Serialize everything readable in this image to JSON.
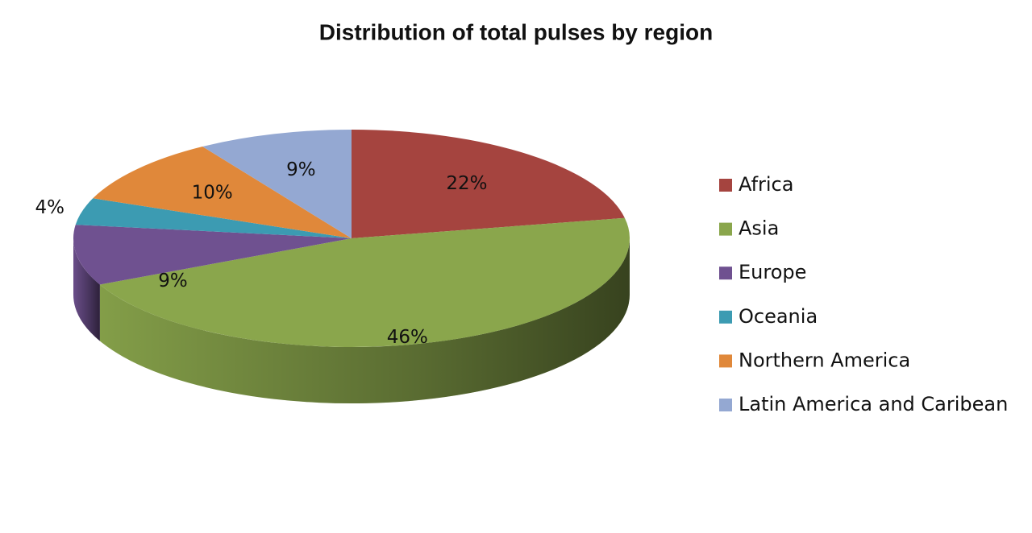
{
  "chart_data": {
    "type": "pie",
    "title": "Distribution of total pulses by region",
    "categories": [
      "Africa",
      "Asia",
      "Europe",
      "Oceania",
      "Northern America",
      "Latin America and Caribean"
    ],
    "values": [
      22,
      46,
      9,
      4,
      10,
      9
    ],
    "value_labels": [
      "22%",
      "46%",
      "9%",
      "4%",
      "10%",
      "9%"
    ],
    "colors": [
      "#a5443f",
      "#8aa64c",
      "#6f5190",
      "#3c9bb2",
      "#e0883a",
      "#94a8d2"
    ],
    "legend": "right"
  }
}
